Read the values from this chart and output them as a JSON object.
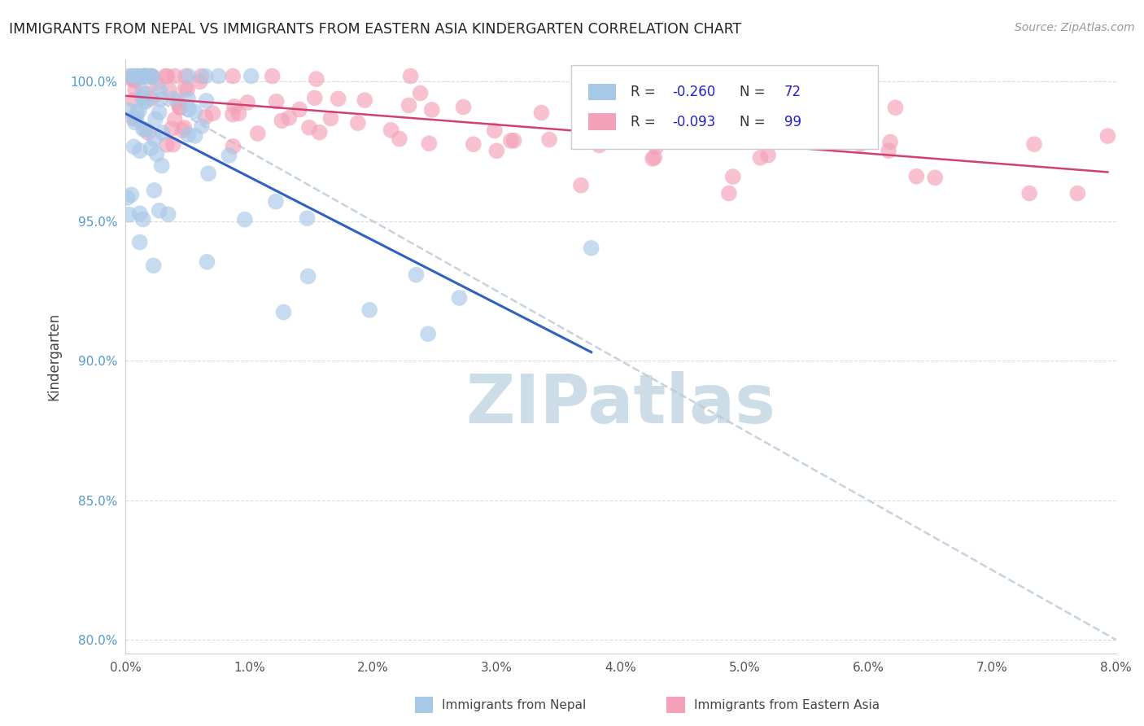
{
  "title": "IMMIGRANTS FROM NEPAL VS IMMIGRANTS FROM EASTERN ASIA KINDERGARTEN CORRELATION CHART",
  "source": "Source: ZipAtlas.com",
  "ylabel": "Kindergarten",
  "legend_labels": [
    "Immigrants from Nepal",
    "Immigrants from Eastern Asia"
  ],
  "r_nepal": -0.26,
  "n_nepal": 72,
  "r_eastern": -0.093,
  "n_eastern": 99,
  "color_nepal": "#a8c8e8",
  "color_eastern": "#f4a0b8",
  "line_color_nepal": "#3060c0",
  "line_color_eastern": "#d04070",
  "dashed_line_color": "#b8c8d8",
  "title_color": "#222222",
  "watermark_color": "#ccdde8",
  "xlim": [
    0.0,
    0.08
  ],
  "ylim": [
    0.8,
    1.005
  ],
  "xticks": [
    0.0,
    0.01,
    0.02,
    0.03,
    0.04,
    0.05,
    0.06,
    0.07,
    0.08
  ],
  "yticks": [
    0.8,
    0.85,
    0.9,
    0.95,
    1.0
  ],
  "xtick_labels": [
    "0.0%",
    "1.0%",
    "2.0%",
    "3.0%",
    "4.0%",
    "5.0%",
    "6.0%",
    "7.0%",
    "8.0%"
  ],
  "ytick_labels": [
    "80.0%",
    "85.0%",
    "90.0%",
    "95.0%",
    "100.0%"
  ]
}
